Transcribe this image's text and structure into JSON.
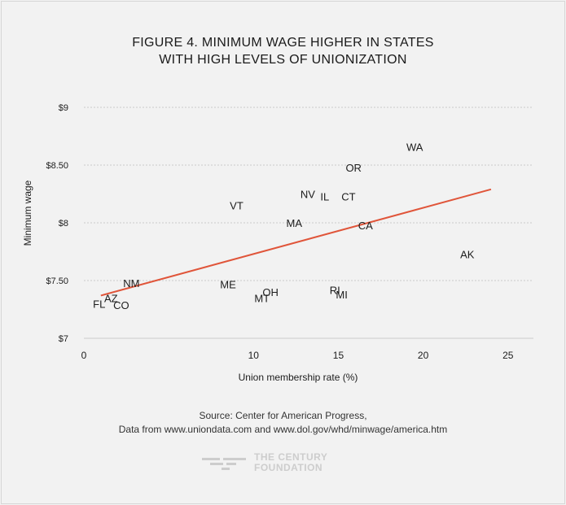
{
  "title": {
    "line1": "FIGURE 4. MINIMUM WAGE HIGHER IN STATES",
    "line2": "WITH HIGH LEVELS OF UNIONIZATION"
  },
  "source": {
    "line1": "Source: Center for American Progress,",
    "line2": "Data from www.uniondata.com and www.dol.gov/whd/minwage/america.htm"
  },
  "logo": {
    "icon": "century-foundation-logo-icon",
    "line1": "THE CENTURY",
    "line2": "FOUNDATION"
  },
  "colors": {
    "trend": "#e0553a",
    "grid": "#c9c9c9",
    "text": "#1c1c1c"
  },
  "chart_data": {
    "type": "scatter",
    "title": "FIGURE 4. MINIMUM WAGE HIGHER IN STATES WITH HIGH LEVELS OF UNIONIZATION",
    "xlabel": "Union membership rate (%)",
    "ylabel": "Minimum wage",
    "xlim": [
      0,
      26.5
    ],
    "ylim": [
      7,
      9
    ],
    "xticks": [
      {
        "value": 0,
        "label": "0"
      },
      {
        "value": 10,
        "label": "10"
      },
      {
        "value": 15,
        "label": "15"
      },
      {
        "value": 20,
        "label": "20"
      },
      {
        "value": 25,
        "label": "25"
      }
    ],
    "yticks": [
      {
        "value": 7,
        "label": "$7"
      },
      {
        "value": 7.5,
        "label": "$7.50"
      },
      {
        "value": 8,
        "label": "$8"
      },
      {
        "value": 8.5,
        "label": "$8.50"
      },
      {
        "value": 9,
        "label": "$9"
      }
    ],
    "grid": "horizontal",
    "points": [
      {
        "label": "WA",
        "x": 19.5,
        "y": 8.66
      },
      {
        "label": "OR",
        "x": 15.9,
        "y": 8.48
      },
      {
        "label": "NV",
        "x": 13.2,
        "y": 8.25
      },
      {
        "label": "IL",
        "x": 14.2,
        "y": 8.23
      },
      {
        "label": "CT",
        "x": 15.6,
        "y": 8.23
      },
      {
        "label": "VT",
        "x": 9.0,
        "y": 8.15
      },
      {
        "label": "MA",
        "x": 12.4,
        "y": 8.0
      },
      {
        "label": "CA",
        "x": 16.6,
        "y": 7.98
      },
      {
        "label": "AK",
        "x": 22.6,
        "y": 7.73
      },
      {
        "label": "NM",
        "x": 2.8,
        "y": 7.48
      },
      {
        "label": "ME",
        "x": 8.5,
        "y": 7.47
      },
      {
        "label": "OH",
        "x": 11.0,
        "y": 7.4
      },
      {
        "label": "MT",
        "x": 10.5,
        "y": 7.35
      },
      {
        "label": "RI",
        "x": 14.8,
        "y": 7.42
      },
      {
        "label": "MI",
        "x": 15.2,
        "y": 7.38
      },
      {
        "label": "AZ",
        "x": 1.6,
        "y": 7.35
      },
      {
        "label": "FL",
        "x": 0.9,
        "y": 7.3
      },
      {
        "label": "CO",
        "x": 2.2,
        "y": 7.29
      }
    ],
    "trendline": {
      "x": [
        1.0,
        24.0
      ],
      "y": [
        7.37,
        8.29
      ]
    }
  }
}
